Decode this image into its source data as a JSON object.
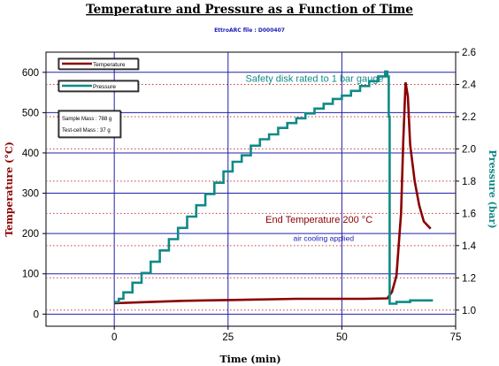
{
  "chart_data": {
    "type": "line",
    "title": "Temperature and Pressure as a Function of Time",
    "subtitle": "EttroARC file : D000407",
    "xlabel": "Time (min)",
    "ylabel_left": "Temperature (°C)",
    "ylabel_right": "Pressure (bar)",
    "xlim": [
      -15,
      75
    ],
    "ylim_left": [
      -30,
      650
    ],
    "ylim_right": [
      0.9,
      2.6
    ],
    "x_ticks": [
      "0",
      "25",
      "50",
      "75"
    ],
    "y_left_ticks": [
      "0",
      "100",
      "200",
      "300",
      "400",
      "500",
      "600"
    ],
    "y_right_ticks": [
      "1.0",
      "1.2",
      "1.4",
      "1.6",
      "1.8",
      "2.0",
      "2.2",
      "2.4",
      "2.6"
    ],
    "grid": true,
    "legend": [
      {
        "name": "Temperature",
        "color": "#8b0000"
      },
      {
        "name": "Pressure",
        "color": "#108a86"
      }
    ],
    "info_box": [
      "Sample Mass : 788 g",
      "Test-cell Mass : 37 g"
    ],
    "annotations": [
      {
        "text": "Safety disk rated to 1 bar gauge",
        "color": "#108a86",
        "x": 44,
        "y_left": 577
      },
      {
        "text": "End Temperature 200 °C",
        "color": "#8b0000",
        "x": 45,
        "y_left": 227
      },
      {
        "text": "air cooling applied",
        "color": "#1a1ab8",
        "x": 46,
        "y_left": 182
      }
    ],
    "series": [
      {
        "name": "Temperature",
        "axis": "left",
        "color": "#8b0000",
        "x": [
          0,
          5,
          10,
          15,
          20,
          25,
          30,
          35,
          40,
          45,
          50,
          55,
          60,
          61,
          62,
          63,
          63.5,
          64,
          64.5,
          65,
          66,
          67,
          68,
          69.5
        ],
        "y": [
          27,
          29,
          31,
          33,
          34,
          35,
          36,
          37,
          38,
          38,
          38,
          38,
          39,
          55,
          95,
          250,
          430,
          575,
          540,
          420,
          330,
          270,
          230,
          212
        ]
      },
      {
        "name": "Pressure",
        "axis": "right",
        "color": "#108a86",
        "x": [
          0,
          1,
          2,
          4,
          6,
          8,
          10,
          12,
          14,
          16,
          18,
          20,
          22,
          24,
          26,
          28,
          30,
          32,
          34,
          36,
          38,
          40,
          42,
          44,
          46,
          48,
          50,
          52,
          54,
          56,
          58,
          59.5,
          60,
          60.3,
          60.5,
          61,
          62,
          65,
          70
        ],
        "y": [
          1.05,
          1.07,
          1.11,
          1.17,
          1.23,
          1.3,
          1.37,
          1.44,
          1.51,
          1.58,
          1.65,
          1.72,
          1.79,
          1.86,
          1.92,
          1.96,
          2.02,
          2.06,
          2.09,
          2.13,
          2.16,
          2.19,
          2.22,
          2.25,
          2.28,
          2.31,
          2.33,
          2.36,
          2.39,
          2.42,
          2.45,
          2.48,
          2.45,
          2.2,
          1.04,
          1.04,
          1.05,
          1.06,
          1.06
        ]
      }
    ]
  }
}
